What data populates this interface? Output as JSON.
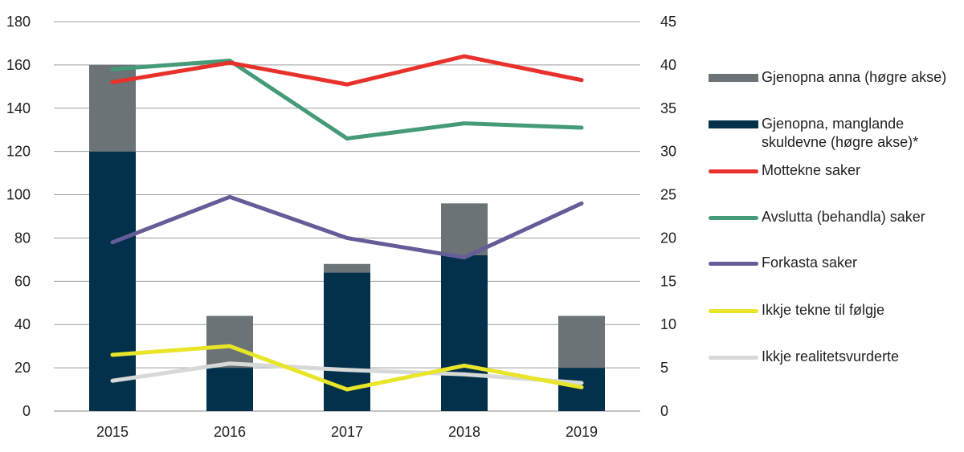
{
  "chart_data": {
    "type": "bar+line",
    "title": "",
    "categories": [
      "2015",
      "2016",
      "2017",
      "2018",
      "2019"
    ],
    "left_axis": {
      "label": "",
      "range": [
        0,
        180
      ],
      "ticks": [
        0,
        20,
        40,
        60,
        80,
        100,
        120,
        140,
        160,
        180
      ],
      "tick_labels": [
        "0",
        "20",
        "40",
        "60",
        "80",
        "100",
        "120",
        "140",
        "160",
        "180"
      ]
    },
    "right_axis": {
      "label": "",
      "range": [
        0,
        45
      ],
      "ticks": [
        0,
        5,
        10,
        15,
        20,
        25,
        30,
        35,
        40,
        45
      ],
      "tick_labels": [
        "0",
        "5",
        "10",
        "15",
        "20",
        "25",
        "30",
        "35",
        "40",
        "45"
      ]
    },
    "grid": true,
    "legend_position": "right",
    "bar_series": [
      {
        "name": "Gjenopna, manglande skuldevne (høgre akse)*",
        "axis": "right",
        "color": "#03304b",
        "values": [
          30,
          5,
          16,
          18,
          5
        ]
      },
      {
        "name": "Gjenopna anna (høgre akse)",
        "axis": "right",
        "color": "#6b7376",
        "values": [
          10,
          6,
          1,
          6,
          6
        ]
      }
    ],
    "line_series": [
      {
        "name": "Mottekne saker",
        "axis": "left",
        "color": "#e8312a",
        "values": [
          152,
          161,
          151,
          164,
          153
        ]
      },
      {
        "name": "Avslutta (behandla) saker",
        "axis": "left",
        "color": "#459a77",
        "values": [
          158,
          162,
          126,
          133,
          131
        ]
      },
      {
        "name": "Forkasta saker",
        "axis": "left",
        "color": "#655d98",
        "values": [
          78,
          99,
          80,
          71,
          96
        ]
      },
      {
        "name": "Ikkje tekne til følgje",
        "axis": "left",
        "color": "#e9e528",
        "values": [
          26,
          30,
          10,
          21,
          11
        ]
      },
      {
        "name": "Ikkje realitetsvurderte",
        "axis": "left",
        "color": "#d7d9d8",
        "values": [
          14,
          22,
          19,
          17,
          13
        ]
      }
    ]
  },
  "legend": [
    {
      "label": "Gjenopna anna (høgre akse)",
      "kind": "bar",
      "color": "#6b7376"
    },
    {
      "label": "Gjenopna, manglande skuldevne (høgre akse)*",
      "kind": "bar",
      "color": "#03304b"
    },
    {
      "label": "Mottekne saker",
      "kind": "line",
      "color": "#e8312a"
    },
    {
      "label": "Avslutta (behandla) saker",
      "kind": "line",
      "color": "#459a77"
    },
    {
      "label": "Forkasta saker",
      "kind": "line",
      "color": "#655d98"
    },
    {
      "label": "Ikkje tekne til følgje",
      "kind": "line",
      "color": "#e9e528"
    },
    {
      "label": "Ikkje realitetsvurderte",
      "kind": "line",
      "color": "#d7d9d8"
    }
  ]
}
